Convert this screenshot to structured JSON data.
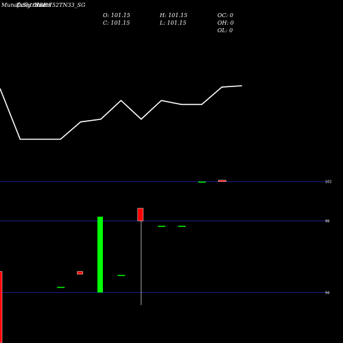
{
  "header": {
    "title_overlap_a": "MunafaSutra.com",
    "title_overlap_b": "Daily Charts",
    "symbol": "NSE 752TN33_SG"
  },
  "ohlc_readout": {
    "o": "O: 101.15",
    "h": "H: 101.15",
    "oc": "OC: 0",
    "c": "C: 101.15",
    "l": "L: 101.15",
    "oh": "OH: 0",
    "ol": "OL: 0"
  },
  "colors": {
    "background": "#000000",
    "line": "#ffffff",
    "gridline": "#1f1f8f",
    "up_candle": "#00ff00",
    "down_candle": "#ff0000",
    "wick": "#aaaaaa",
    "text": "#ffffff"
  },
  "chart_data": [
    {
      "type": "line",
      "x": [
        1,
        2,
        3,
        4,
        5,
        6,
        7,
        8,
        9,
        10,
        11,
        12,
        13
      ],
      "values": [
        101.15,
        99.25,
        99.25,
        99.25,
        99.9,
        100.0,
        100.7,
        100.0,
        100.7,
        100.55,
        100.55,
        101.2,
        101.25
      ]
    },
    {
      "type": "candlestick",
      "y_ticks": [
        "102",
        "99",
        "94"
      ],
      "ylim": [
        90.4,
        103.5
      ],
      "candles": [
        {
          "x": 1,
          "open": 95.5,
          "close": 90.4,
          "high": 95.5,
          "low": 90.4
        },
        {
          "x": 4,
          "open": 94.4,
          "close": 94.4,
          "high": 94.4,
          "low": 94.4
        },
        {
          "x": 5,
          "open": 95.5,
          "close": 95.3,
          "high": 95.5,
          "low": 95.3
        },
        {
          "x": 6,
          "open": 94.0,
          "close": 99.4,
          "high": 99.4,
          "low": 94.0
        },
        {
          "x": 7,
          "open": 95.25,
          "close": 95.25,
          "high": 95.25,
          "low": 95.25
        },
        {
          "x": 8,
          "open": 100.0,
          "close": 99.1,
          "high": 100.0,
          "low": 93.1
        },
        {
          "x": 9,
          "open": 98.75,
          "close": 98.75,
          "high": 98.75,
          "low": 98.75
        },
        {
          "x": 10,
          "open": 98.75,
          "close": 98.75,
          "high": 98.75,
          "low": 98.75
        },
        {
          "x": 11,
          "open": 101.9,
          "close": 101.9,
          "high": 101.9,
          "low": 101.9
        },
        {
          "x": 12,
          "open": 102.0,
          "close": 101.9,
          "high": 102.0,
          "low": 101.9
        }
      ]
    }
  ]
}
